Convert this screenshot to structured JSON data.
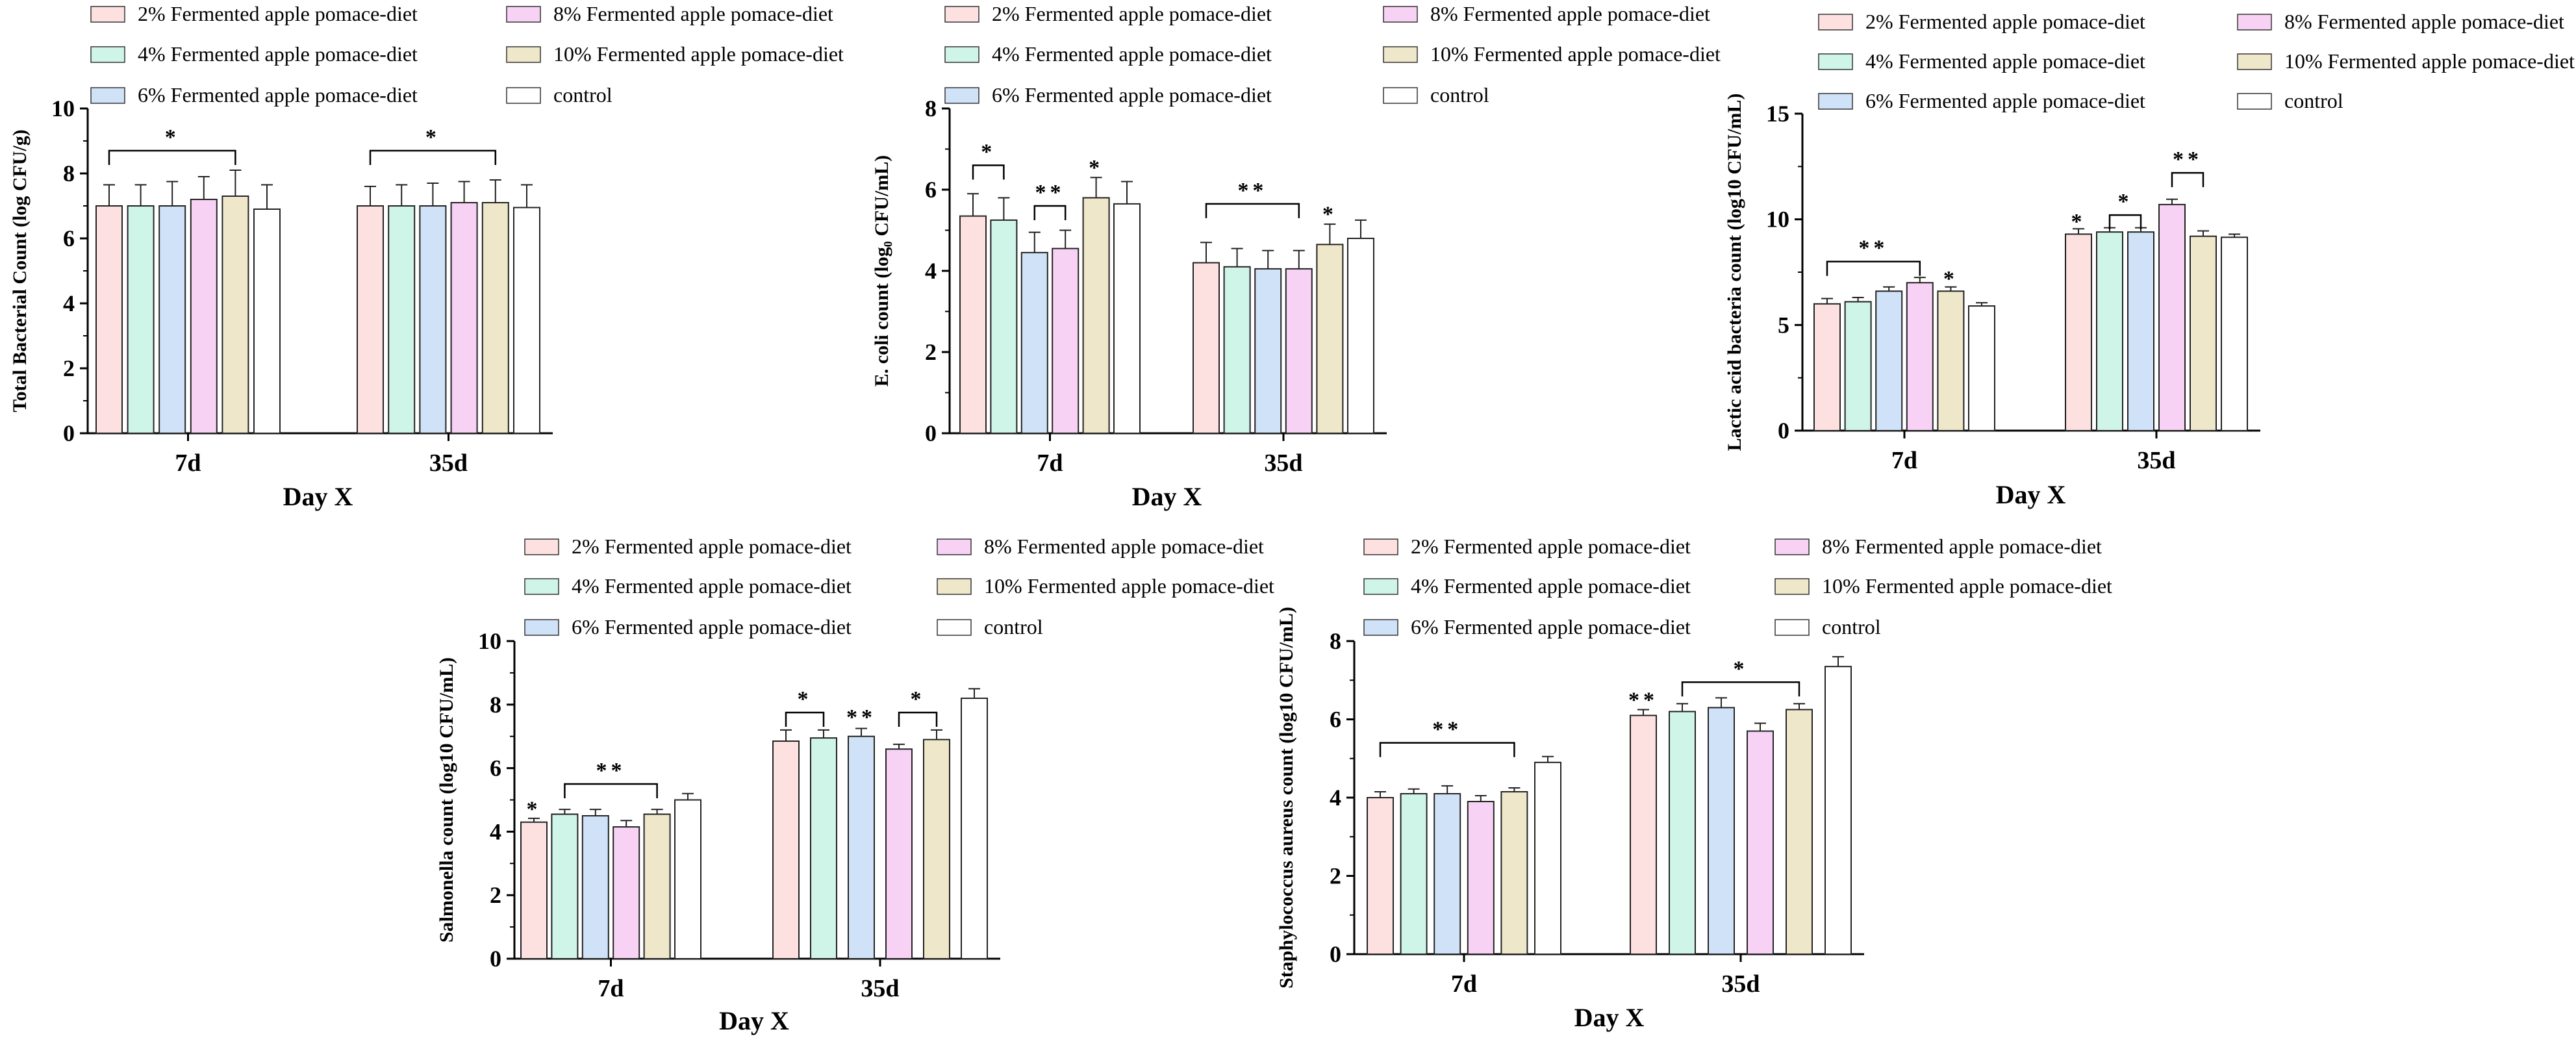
{
  "colors": {
    "2% Fermented apple pomace-diet": "#fde0e0",
    "4% Fermented apple pomace-diet": "#cff5e9",
    "6% Fermented apple pomace-diet": "#cfe2f7",
    "8% Fermented apple pomace-diet": "#f7d2f4",
    "10% Fermented apple pomace-diet": "#efe7c9",
    "control": "#ffffff"
  },
  "chart_data": [
    {
      "type": "bar",
      "categories": [
        "7d",
        "35d"
      ],
      "xlabel": "Day X",
      "ylabel": "Total Bacterial Count (log CFU/g)",
      "ylim": [
        0,
        10
      ],
      "yticks": [
        0,
        2,
        4,
        6,
        8,
        10
      ],
      "legend": "top",
      "series": [
        {
          "name": "2% Fermented apple pomace-diet",
          "values": [
            7.0,
            7.0
          ],
          "errors": [
            0.65,
            0.6
          ]
        },
        {
          "name": "4% Fermented apple pomace-diet",
          "values": [
            7.0,
            7.0
          ],
          "errors": [
            0.65,
            0.65
          ]
        },
        {
          "name": "6% Fermented apple pomace-diet",
          "values": [
            7.0,
            7.0
          ],
          "errors": [
            0.75,
            0.7
          ]
        },
        {
          "name": "8% Fermented apple pomace-diet",
          "values": [
            7.2,
            7.1
          ],
          "errors": [
            0.7,
            0.65
          ]
        },
        {
          "name": "10% Fermented apple pomace-diet",
          "values": [
            7.3,
            7.1
          ],
          "errors": [
            0.8,
            0.7
          ]
        },
        {
          "name": "control",
          "values": [
            6.9,
            6.95
          ],
          "errors": [
            0.75,
            0.7
          ]
        }
      ],
      "annotations": [
        {
          "text": "*",
          "group": 0,
          "from": 0,
          "to": 4,
          "y": 8.7
        },
        {
          "text": "*",
          "group": 1,
          "from": 0,
          "to": 4,
          "y": 8.7
        }
      ]
    },
    {
      "type": "bar",
      "categories": [
        "7d",
        "35d"
      ],
      "xlabel": "Day X",
      "ylabel": "E. coli count (log₀ CFU/mL)",
      "ylim": [
        0,
        8
      ],
      "yticks": [
        0,
        2,
        4,
        6,
        8
      ],
      "legend": "top",
      "series": [
        {
          "name": "2% Fermented apple pomace-diet",
          "values": [
            5.35,
            4.2
          ],
          "errors": [
            0.55,
            0.5
          ]
        },
        {
          "name": "4% Fermented apple pomace-diet",
          "values": [
            5.25,
            4.1
          ],
          "errors": [
            0.55,
            0.45
          ]
        },
        {
          "name": "6% Fermented apple pomace-diet",
          "values": [
            4.45,
            4.05
          ],
          "errors": [
            0.5,
            0.45
          ]
        },
        {
          "name": "8% Fermented apple pomace-diet",
          "values": [
            4.55,
            4.05
          ],
          "errors": [
            0.45,
            0.45
          ]
        },
        {
          "name": "10% Fermented apple pomace-diet",
          "values": [
            5.8,
            4.65
          ],
          "errors": [
            0.5,
            0.5
          ]
        },
        {
          "name": "control",
          "values": [
            5.65,
            4.8
          ],
          "errors": [
            0.55,
            0.45
          ]
        }
      ],
      "annotations": [
        {
          "text": "*",
          "group": 0,
          "from": 0,
          "to": 1,
          "y": 6.6
        },
        {
          "text": "**",
          "group": 0,
          "from": 2,
          "to": 3,
          "y": 5.6
        },
        {
          "text": "*",
          "group": 0,
          "mark": 4,
          "y": 6.5
        },
        {
          "text": "**",
          "group": 1,
          "from": 0,
          "to": 3,
          "y": 5.65
        },
        {
          "text": "*",
          "group": 1,
          "mark": 4,
          "y": 5.35
        }
      ]
    },
    {
      "type": "bar",
      "categories": [
        "7d",
        "35d"
      ],
      "xlabel": "Day X",
      "ylabel": "Lactic acid bacteria count (log10 CFU/mL)",
      "ylim": [
        0,
        15
      ],
      "yticks": [
        0,
        5,
        10,
        15
      ],
      "legend": "top",
      "series": [
        {
          "name": "2% Fermented apple pomace-diet",
          "values": [
            6.0,
            9.3
          ],
          "errors": [
            0.25,
            0.25
          ]
        },
        {
          "name": "4% Fermented apple pomace-diet",
          "values": [
            6.1,
            9.4
          ],
          "errors": [
            0.2,
            0.2
          ]
        },
        {
          "name": "6% Fermented apple pomace-diet",
          "values": [
            6.6,
            9.4
          ],
          "errors": [
            0.2,
            0.2
          ]
        },
        {
          "name": "8% Fermented apple pomace-diet",
          "values": [
            7.0,
            10.7
          ],
          "errors": [
            0.25,
            0.25
          ]
        },
        {
          "name": "10% Fermented apple pomace-diet",
          "values": [
            6.6,
            9.2
          ],
          "errors": [
            0.2,
            0.25
          ]
        },
        {
          "name": "control",
          "values": [
            5.9,
            9.15
          ],
          "errors": [
            0.15,
            0.15
          ]
        }
      ],
      "annotations": [
        {
          "text": "**",
          "group": 0,
          "from": 0,
          "to": 3,
          "y": 8.0
        },
        {
          "text": "*",
          "group": 0,
          "mark": 4,
          "y": 7.1
        },
        {
          "text": "*",
          "group": 1,
          "mark": 0,
          "y": 9.8
        },
        {
          "text": "*",
          "group": 1,
          "from": 1,
          "to": 2,
          "y": 10.2
        },
        {
          "text": "**",
          "group": 1,
          "from": 3,
          "to": 4,
          "y": 12.2
        }
      ]
    },
    {
      "type": "bar",
      "categories": [
        "7d",
        "35d"
      ],
      "xlabel": "Day X",
      "ylabel": "Salmonella count (log10 CFU/mL)",
      "ylim": [
        0,
        10
      ],
      "yticks": [
        0,
        2,
        4,
        6,
        8,
        10
      ],
      "legend": "top",
      "series": [
        {
          "name": "2% Fermented apple pomace-diet",
          "values": [
            4.3,
            6.85
          ],
          "errors": [
            0.12,
            0.35
          ]
        },
        {
          "name": "4% Fermented apple pomace-diet",
          "values": [
            4.55,
            6.95
          ],
          "errors": [
            0.15,
            0.25
          ]
        },
        {
          "name": "6% Fermented apple pomace-diet",
          "values": [
            4.5,
            7.0
          ],
          "errors": [
            0.2,
            0.25
          ]
        },
        {
          "name": "8% Fermented apple pomace-diet",
          "values": [
            4.15,
            6.6
          ],
          "errors": [
            0.2,
            0.15
          ]
        },
        {
          "name": "10% Fermented apple pomace-diet",
          "values": [
            4.55,
            6.9
          ],
          "errors": [
            0.15,
            0.3
          ]
        },
        {
          "name": "control",
          "values": [
            5.0,
            8.2
          ],
          "errors": [
            0.2,
            0.3
          ]
        }
      ],
      "annotations": [
        {
          "text": "*",
          "group": 0,
          "mark": 0,
          "y": 4.65
        },
        {
          "text": "**",
          "group": 0,
          "from": 1,
          "to": 4,
          "y": 5.5
        },
        {
          "text": "*",
          "group": 1,
          "from": 0,
          "to": 1,
          "y": 7.75
        },
        {
          "text": "**",
          "group": 1,
          "mark": 2,
          "y": 7.55
        },
        {
          "text": "*",
          "group": 1,
          "from": 3,
          "to": 4,
          "y": 7.75
        }
      ]
    },
    {
      "type": "bar",
      "categories": [
        "7d",
        "35d"
      ],
      "xlabel": "Day X",
      "ylabel": "Staphylococcus aureus count (log10 CFU/mL)",
      "ylim": [
        0,
        8
      ],
      "yticks": [
        0,
        2,
        4,
        6,
        8
      ],
      "legend": "top",
      "series": [
        {
          "name": "2% Fermented apple pomace-diet",
          "values": [
            4.0,
            6.1
          ],
          "errors": [
            0.15,
            0.15
          ]
        },
        {
          "name": "4% Fermented apple pomace-diet",
          "values": [
            4.1,
            6.2
          ],
          "errors": [
            0.12,
            0.2
          ]
        },
        {
          "name": "6% Fermented apple pomace-diet",
          "values": [
            4.1,
            6.3
          ],
          "errors": [
            0.2,
            0.25
          ]
        },
        {
          "name": "8% Fermented apple pomace-diet",
          "values": [
            3.9,
            5.7
          ],
          "errors": [
            0.15,
            0.2
          ]
        },
        {
          "name": "10% Fermented apple pomace-diet",
          "values": [
            4.15,
            6.25
          ],
          "errors": [
            0.1,
            0.15
          ]
        },
        {
          "name": "control",
          "values": [
            4.9,
            7.35
          ],
          "errors": [
            0.15,
            0.25
          ]
        }
      ],
      "annotations": [
        {
          "text": "**",
          "group": 0,
          "from": 0,
          "to": 4,
          "y": 5.4
        },
        {
          "text": "**",
          "group": 1,
          "mark": 0,
          "y": 6.45
        },
        {
          "text": "*",
          "group": 1,
          "from": 1,
          "to": 4,
          "y": 6.95
        }
      ]
    }
  ]
}
